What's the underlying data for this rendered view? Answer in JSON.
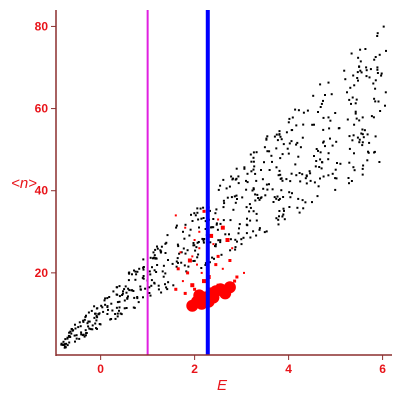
{
  "chart_data": {
    "type": "scatter",
    "title": "",
    "xlabel": "E",
    "ylabel": "<n>",
    "xlim": [
      -0.95,
      6.2
    ],
    "ylim": [
      0,
      84
    ],
    "xticks": [
      0,
      2,
      4,
      6
    ],
    "yticks": [
      20,
      40,
      60,
      80
    ],
    "grid": false,
    "legend": "none",
    "colors": {
      "text": "#e8141a",
      "axis": "#8b2e2e",
      "points_black": "#000000",
      "points_red": "#ff0000",
      "vline_magenta": "#e020e0",
      "vline_blue": "#0000ff"
    },
    "vlines": [
      {
        "x": 1.0,
        "color": "#e020e0",
        "width": 2
      },
      {
        "x": 2.28,
        "color": "#0000ff",
        "width": 4
      }
    ],
    "bands": [
      {
        "x0": -0.85,
        "x1": 6.1,
        "ylo0": 1,
        "ylo1": 47,
        "yhi0": 4,
        "yhi1": 82,
        "count": 620
      }
    ],
    "red_large": [
      [
        1.95,
        12
      ],
      [
        2.05,
        13
      ],
      [
        2.15,
        12.5
      ],
      [
        2.2,
        14
      ],
      [
        2.3,
        13
      ],
      [
        2.35,
        15
      ],
      [
        2.45,
        15.5
      ],
      [
        2.55,
        16
      ],
      [
        2.65,
        15
      ],
      [
        2.75,
        16.5
      ],
      [
        2.1,
        14.5
      ],
      [
        2.4,
        14
      ]
    ],
    "red_small": [
      [
        1.6,
        34
      ],
      [
        1.8,
        31
      ],
      [
        2.0,
        28
      ],
      [
        2.2,
        35
      ],
      [
        2.35,
        29
      ],
      [
        2.5,
        33
      ],
      [
        2.6,
        31
      ],
      [
        2.7,
        28
      ],
      [
        1.7,
        25
      ],
      [
        1.9,
        23
      ],
      [
        2.1,
        26
      ],
      [
        2.4,
        27
      ],
      [
        2.5,
        24
      ],
      [
        2.8,
        26
      ],
      [
        1.65,
        21
      ],
      [
        1.85,
        20
      ],
      [
        2.05,
        22
      ],
      [
        2.3,
        19
      ],
      [
        2.6,
        21
      ],
      [
        2.9,
        19
      ],
      [
        3.05,
        20
      ],
      [
        1.75,
        18
      ],
      [
        1.95,
        17
      ],
      [
        2.2,
        18
      ],
      [
        2.5,
        17
      ],
      [
        2.85,
        18
      ],
      [
        1.6,
        16
      ],
      [
        1.8,
        15
      ],
      [
        2.0,
        16
      ],
      [
        2.3,
        16
      ],
      [
        2.1,
        30
      ],
      [
        1.95,
        24
      ],
      [
        2.45,
        22
      ],
      [
        2.75,
        23
      ],
      [
        2.15,
        20
      ]
    ]
  }
}
